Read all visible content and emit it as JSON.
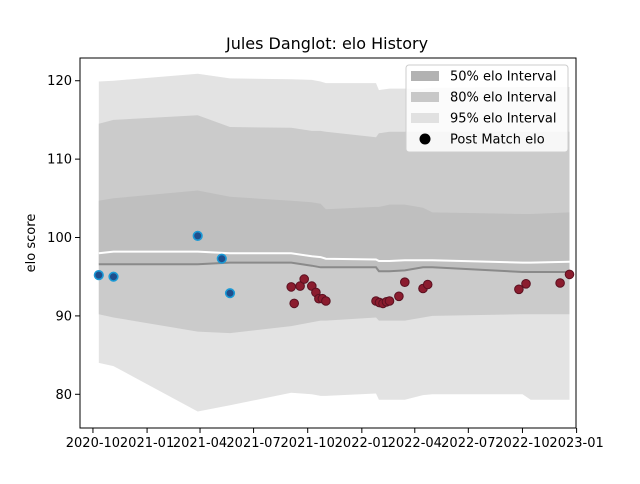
{
  "chart_data": {
    "type": "scatter",
    "title": "Jules Danglot: elo History",
    "xlabel": "",
    "ylabel": "elo score",
    "xlim": [
      "2020-09-09",
      "2022-12-31"
    ],
    "ylim": [
      75.7,
      122.9
    ],
    "x_ticks": [
      "2020-10",
      "2021-01",
      "2021-04",
      "2021-07",
      "2021-10",
      "2022-01",
      "2022-04",
      "2022-07",
      "2022-10",
      "2023-01"
    ],
    "y_ticks": [
      80,
      90,
      100,
      110,
      120
    ],
    "grid": false,
    "legend_position": "top-right",
    "legend": [
      {
        "label": "50% elo Interval",
        "kind": "band",
        "color": "#b2b2b2"
      },
      {
        "label": "80% elo Interval",
        "kind": "band",
        "color": "#c8c8c8"
      },
      {
        "label": "95% elo Interval",
        "kind": "band",
        "color": "#e1e1e1"
      },
      {
        "label": "Post Match elo",
        "kind": "marker",
        "color": "#000000"
      }
    ],
    "colors": {
      "band95": "#e3e3e3",
      "band80": "#cbcbcb",
      "band50": "#bfbfbf",
      "median_line": "#8a8a8a",
      "mean_line": "#ffffff",
      "point_early_fill": "#1f4e8c",
      "point_early_edge": "#1b9ad6",
      "point_late_fill": "#8b1c2e",
      "point_late_edge": "#5a1020"
    },
    "bands": {
      "dates": [
        "2020-10-11",
        "2020-11-05",
        "2021-03-28",
        "2021-05-22",
        "2021-09-03",
        "2021-10-08",
        "2021-10-23",
        "2021-11-01",
        "2022-01-25",
        "2022-01-30",
        "2022-02-17",
        "2022-03-15",
        "2022-04-15",
        "2022-05-01",
        "2022-10-01",
        "2022-10-15",
        "2022-12-20"
      ],
      "p2_5": [
        84.0,
        83.6,
        77.8,
        78.6,
        80.2,
        80.0,
        79.8,
        79.8,
        80.1,
        79.3,
        79.3,
        79.3,
        79.9,
        80.0,
        80.0,
        79.3,
        79.3
      ],
      "p10": [
        90.2,
        89.8,
        88.0,
        87.8,
        88.7,
        89.2,
        89.4,
        89.4,
        89.8,
        89.4,
        89.4,
        89.4,
        89.8,
        90.0,
        90.2,
        90.2,
        90.2
      ],
      "p25": [
        96.6,
        96.6,
        96.6,
        96.8,
        96.8,
        96.4,
        96.2,
        96.2,
        96.2,
        95.7,
        95.7,
        95.8,
        96.2,
        96.2,
        95.6,
        95.6,
        95.6
      ],
      "mean": [
        98.0,
        98.2,
        98.2,
        98.0,
        98.0,
        97.6,
        97.5,
        97.3,
        97.2,
        97.0,
        97.0,
        97.1,
        97.1,
        97.1,
        96.8,
        96.8,
        96.9
      ],
      "p75": [
        104.7,
        105.0,
        106.0,
        105.2,
        104.7,
        104.5,
        104.3,
        103.6,
        103.9,
        103.9,
        104.2,
        104.2,
        103.8,
        103.2,
        103.0,
        103.0,
        103.2
      ],
      "p90": [
        114.5,
        115.0,
        115.6,
        114.1,
        114.0,
        113.6,
        113.6,
        113.5,
        112.8,
        113.3,
        113.5,
        113.5,
        113.5,
        113.5,
        113.5,
        113.5,
        113.5
      ],
      "p97_5": [
        119.9,
        120.0,
        120.9,
        120.3,
        120.2,
        120.1,
        119.9,
        119.7,
        119.7,
        118.8,
        119.0,
        119.0,
        119.0,
        119.1,
        119.2,
        119.2,
        119.2
      ]
    },
    "series": [
      {
        "group": "early",
        "points": [
          {
            "x": "2020-10-11",
            "y": 95.2
          },
          {
            "x": "2020-11-05",
            "y": 95.0
          },
          {
            "x": "2021-03-28",
            "y": 100.2
          },
          {
            "x": "2021-05-08",
            "y": 97.3
          },
          {
            "x": "2021-05-22",
            "y": 92.9
          }
        ]
      },
      {
        "group": "late",
        "points": [
          {
            "x": "2021-09-03",
            "y": 93.7
          },
          {
            "x": "2021-09-08",
            "y": 91.6
          },
          {
            "x": "2021-09-18",
            "y": 93.8
          },
          {
            "x": "2021-09-25",
            "y": 94.7
          },
          {
            "x": "2021-10-08",
            "y": 93.8
          },
          {
            "x": "2021-10-15",
            "y": 93.0
          },
          {
            "x": "2021-10-20",
            "y": 92.2
          },
          {
            "x": "2021-10-26",
            "y": 92.2
          },
          {
            "x": "2021-11-01",
            "y": 91.9
          },
          {
            "x": "2022-01-25",
            "y": 91.9
          },
          {
            "x": "2022-01-31",
            "y": 91.7
          },
          {
            "x": "2022-02-06",
            "y": 91.6
          },
          {
            "x": "2022-02-12",
            "y": 91.8
          },
          {
            "x": "2022-02-17",
            "y": 91.9
          },
          {
            "x": "2022-03-05",
            "y": 92.5
          },
          {
            "x": "2022-03-15",
            "y": 94.3
          },
          {
            "x": "2022-04-15",
            "y": 93.5
          },
          {
            "x": "2022-04-23",
            "y": 94.0
          },
          {
            "x": "2022-09-25",
            "y": 93.4
          },
          {
            "x": "2022-10-07",
            "y": 94.1
          },
          {
            "x": "2022-12-04",
            "y": 94.2
          },
          {
            "x": "2022-12-20",
            "y": 95.3
          }
        ]
      }
    ]
  }
}
